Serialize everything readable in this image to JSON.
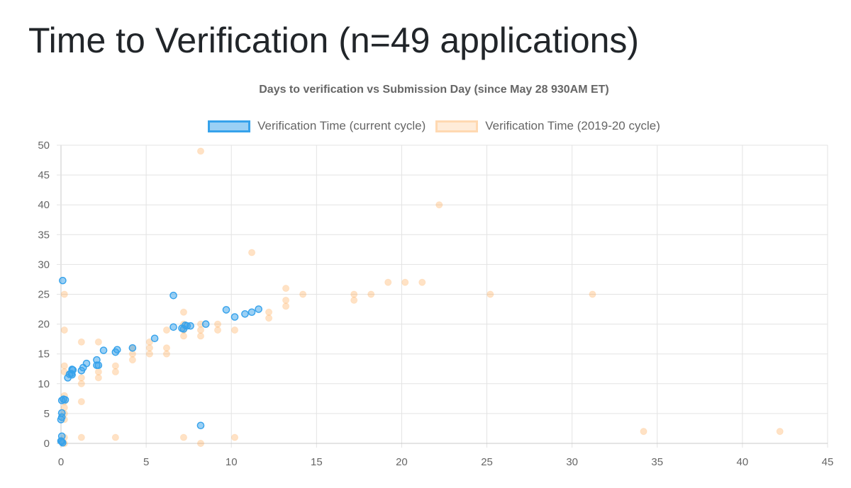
{
  "page": {
    "title": "Time to Verification (n=49 applications)"
  },
  "chart_data": {
    "type": "scatter",
    "title": "Days to verification vs Submission Day (since May 28 930AM ET)",
    "xlabel": "",
    "ylabel": "",
    "xlim": [
      0,
      45
    ],
    "ylim": [
      0,
      50
    ],
    "xticks": [
      "0",
      "5",
      "10",
      "15",
      "20",
      "25",
      "30",
      "35",
      "40",
      "45"
    ],
    "yticks": [
      "0",
      "5",
      "10",
      "15",
      "20",
      "25",
      "30",
      "35",
      "40",
      "45",
      "50"
    ],
    "grid": true,
    "legend_position": "top-center",
    "series": [
      {
        "name": "Verification Time (current cycle)",
        "color": "#36a2eb",
        "fill": "rgba(54,162,235,0.5)",
        "points": [
          [
            0.1,
            27.3
          ],
          [
            0.05,
            7.2
          ],
          [
            0.15,
            7.4
          ],
          [
            0.25,
            7.3
          ],
          [
            0.05,
            5.1
          ],
          [
            0.05,
            4.4
          ],
          [
            0.0,
            4.0
          ],
          [
            0.05,
            1.2
          ],
          [
            0.0,
            0.4
          ],
          [
            0.05,
            0.3
          ],
          [
            0.1,
            0.1
          ],
          [
            0.4,
            11.0
          ],
          [
            0.5,
            11.6
          ],
          [
            0.6,
            11.7
          ],
          [
            0.65,
            11.5
          ],
          [
            0.7,
            12.3
          ],
          [
            0.65,
            12.4
          ],
          [
            1.2,
            12.2
          ],
          [
            1.3,
            12.7
          ],
          [
            1.5,
            13.4
          ],
          [
            2.1,
            14.0
          ],
          [
            2.1,
            13.1
          ],
          [
            2.2,
            13.1
          ],
          [
            2.5,
            15.6
          ],
          [
            3.2,
            15.3
          ],
          [
            3.3,
            15.7
          ],
          [
            4.2,
            16.0
          ],
          [
            5.5,
            17.6
          ],
          [
            6.6,
            24.8
          ],
          [
            6.6,
            19.5
          ],
          [
            7.1,
            19.3
          ],
          [
            7.2,
            19.2
          ],
          [
            7.3,
            19.8
          ],
          [
            7.4,
            19.7
          ],
          [
            7.6,
            19.7
          ],
          [
            8.2,
            3.0
          ],
          [
            8.5,
            20.0
          ],
          [
            9.7,
            22.4
          ],
          [
            10.2,
            21.2
          ],
          [
            10.8,
            21.7
          ],
          [
            11.2,
            22.0
          ],
          [
            11.6,
            22.5
          ]
        ]
      },
      {
        "name": "Verification Time (2019-20 cycle)",
        "color": "#ff9f40",
        "fill": "rgba(255,159,64,0.3)",
        "points": [
          [
            0.2,
            25.0
          ],
          [
            0.2,
            19.0
          ],
          [
            0.2,
            13.0
          ],
          [
            0.2,
            12.0
          ],
          [
            0.2,
            8.0
          ],
          [
            0.2,
            7.0
          ],
          [
            0.2,
            6.0
          ],
          [
            0.2,
            5.0
          ],
          [
            0.2,
            4.0
          ],
          [
            0.2,
            1.0
          ],
          [
            0.2,
            0.0
          ],
          [
            1.2,
            17.0
          ],
          [
            1.2,
            11.0
          ],
          [
            1.2,
            10.0
          ],
          [
            1.2,
            7.0
          ],
          [
            1.2,
            1.0
          ],
          [
            2.2,
            17.0
          ],
          [
            2.2,
            12.0
          ],
          [
            2.2,
            11.0
          ],
          [
            3.2,
            13.0
          ],
          [
            3.2,
            12.0
          ],
          [
            3.2,
            1.0
          ],
          [
            4.2,
            16.0
          ],
          [
            4.2,
            15.0
          ],
          [
            4.2,
            14.0
          ],
          [
            5.2,
            17.0
          ],
          [
            5.2,
            16.0
          ],
          [
            5.2,
            15.0
          ],
          [
            6.2,
            19.0
          ],
          [
            6.2,
            16.0
          ],
          [
            6.2,
            15.0
          ],
          [
            7.2,
            22.0
          ],
          [
            7.2,
            20.0
          ],
          [
            7.2,
            19.0
          ],
          [
            7.2,
            18.0
          ],
          [
            7.2,
            1.0
          ],
          [
            8.2,
            49.0
          ],
          [
            8.2,
            20.0
          ],
          [
            8.2,
            19.0
          ],
          [
            8.2,
            18.0
          ],
          [
            8.2,
            0.0
          ],
          [
            9.2,
            20.0
          ],
          [
            9.2,
            19.0
          ],
          [
            10.2,
            19.0
          ],
          [
            10.2,
            1.0
          ],
          [
            11.2,
            32.0
          ],
          [
            12.2,
            22.0
          ],
          [
            12.2,
            21.0
          ],
          [
            13.2,
            26.0
          ],
          [
            13.2,
            24.0
          ],
          [
            13.2,
            23.0
          ],
          [
            14.2,
            25.0
          ],
          [
            17.2,
            25.0
          ],
          [
            17.2,
            24.0
          ],
          [
            18.2,
            25.0
          ],
          [
            19.2,
            27.0
          ],
          [
            20.2,
            27.0
          ],
          [
            21.2,
            27.0
          ],
          [
            22.2,
            40.0
          ],
          [
            25.2,
            25.0
          ],
          [
            31.2,
            25.0
          ],
          [
            34.2,
            2.0
          ],
          [
            42.2,
            2.0
          ]
        ]
      }
    ]
  },
  "legend": {
    "items": [
      {
        "label": "Verification Time (current cycle)",
        "border": "#36a2eb",
        "fill": "rgba(54,162,235,0.5)"
      },
      {
        "label": "Verification Time (2019-20 cycle)",
        "border": "rgba(255,159,64,0.25)",
        "fill": "rgba(255,159,64,0.2)"
      }
    ]
  }
}
